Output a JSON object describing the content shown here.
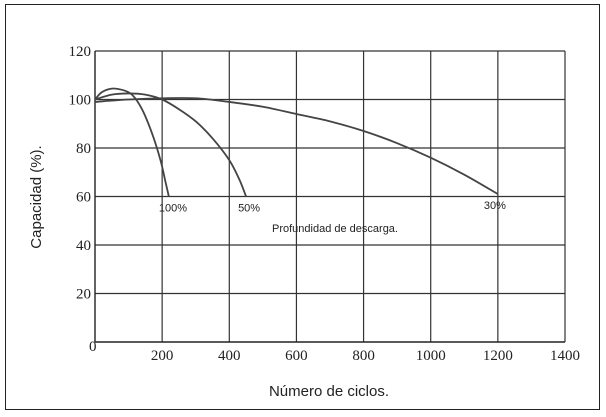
{
  "chart_data": {
    "type": "line",
    "title": "",
    "xlabel": "Número de ciclos.",
    "ylabel": "Capacidad (%).",
    "xlim": [
      0,
      1400
    ],
    "ylim": [
      0,
      120
    ],
    "xticks": [
      0,
      200,
      400,
      600,
      800,
      1000,
      1200,
      1400
    ],
    "yticks": [
      0,
      20,
      40,
      60,
      80,
      100,
      120
    ],
    "grid": true,
    "annotation": "Profundidad de descarga.",
    "series": [
      {
        "name": "100%",
        "x": [
          0,
          20,
          50,
          80,
          110,
          140,
          170,
          195,
          210,
          220
        ],
        "y": [
          100,
          103,
          104.5,
          104,
          102,
          96,
          86,
          75,
          66,
          60
        ]
      },
      {
        "name": "50%",
        "x": [
          0,
          50,
          100,
          150,
          200,
          250,
          300,
          350,
          400,
          430,
          450
        ],
        "y": [
          100,
          102,
          102.5,
          102,
          100,
          96,
          91,
          84,
          75,
          67,
          60
        ]
      },
      {
        "name": "30%",
        "x": [
          0,
          100,
          200,
          300,
          400,
          500,
          600,
          700,
          800,
          900,
          1000,
          1100,
          1200
        ],
        "y": [
          99,
          100,
          100.5,
          100.5,
          99,
          97,
          94,
          91,
          87,
          82,
          76,
          69,
          61
        ]
      }
    ]
  }
}
